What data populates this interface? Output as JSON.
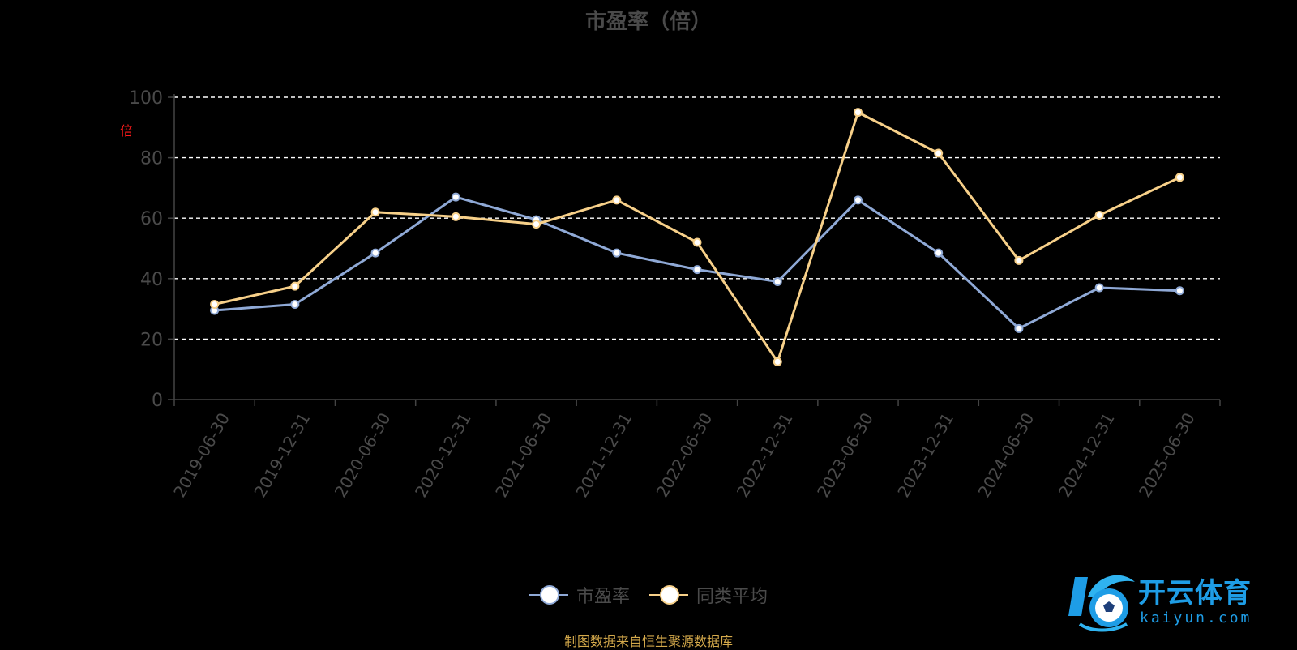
{
  "chart_data": {
    "type": "line",
    "title": "市盈率（倍）",
    "ylabel": "倍",
    "xlabel": "",
    "ylim": [
      0,
      100
    ],
    "yticks": [
      0,
      20,
      40,
      60,
      80,
      100
    ],
    "grid": true,
    "legend_position": "bottom-center",
    "categories": [
      "2019-06-30",
      "2019-12-31",
      "2020-06-30",
      "2020-12-31",
      "2021-06-30",
      "2021-12-31",
      "2022-06-30",
      "2022-12-31",
      "2023-06-30",
      "2023-12-31",
      "2024-06-30",
      "2024-12-31",
      "2025-06-30"
    ],
    "series": [
      {
        "name": "市盈率",
        "color": "#8fa9d6",
        "values": [
          29.5,
          31.5,
          48.5,
          67.0,
          59.5,
          48.5,
          43.0,
          39.0,
          66.0,
          48.5,
          23.5,
          37.0,
          36.0
        ]
      },
      {
        "name": "同类平均",
        "color": "#f7d089",
        "values": [
          31.5,
          37.5,
          62.0,
          60.5,
          58.0,
          66.0,
          52.0,
          12.5,
          95.0,
          81.5,
          46.0,
          61.0,
          73.5
        ]
      }
    ]
  },
  "source_text": "制图数据来自恒生聚源数据库",
  "logo": {
    "name": "开云体育",
    "sub": "kaiyun.com",
    "icon": "kaiyun-soccer-logo-icon"
  }
}
